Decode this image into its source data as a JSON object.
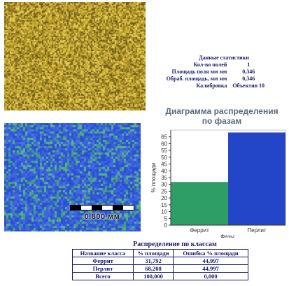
{
  "scale_label": "0.800 мм",
  "stats": {
    "title": "Данные статистики",
    "rows": [
      {
        "key": "Кол-во полей",
        "value": "1"
      },
      {
        "key": "Площадь поля мм мм",
        "value": "0,346"
      },
      {
        "key": "Обраб. площадь, мм мм",
        "value": "0,346"
      },
      {
        "key": "Калибровка",
        "value": "Объектив 10"
      }
    ]
  },
  "chart_title_line1": "Диаграмма распределения",
  "chart_title_line2": "по фазам",
  "chart_data": {
    "type": "bar",
    "categories": [
      "Феррит",
      "Перлит"
    ],
    "values": [
      31.792,
      68.208
    ],
    "colors": [
      "#2e9e66",
      "#2345c8"
    ],
    "ylabel": "% площади",
    "xlabel": "Фазы",
    "ylim": [
      0,
      70
    ],
    "yticks": [
      0,
      5,
      10,
      15,
      20,
      25,
      30,
      35,
      40,
      45,
      50,
      55,
      60,
      65
    ],
    "grid": false
  },
  "table": {
    "title": "Распределение по классам",
    "headers": [
      "Название класса",
      "% площади",
      "Ошибка % площади"
    ],
    "rows": [
      [
        "Феррит",
        "31,792",
        "44,997"
      ],
      [
        "Перлит",
        "68,208",
        "44,997"
      ],
      [
        "Всего",
        "100,000",
        "0,000"
      ]
    ]
  }
}
